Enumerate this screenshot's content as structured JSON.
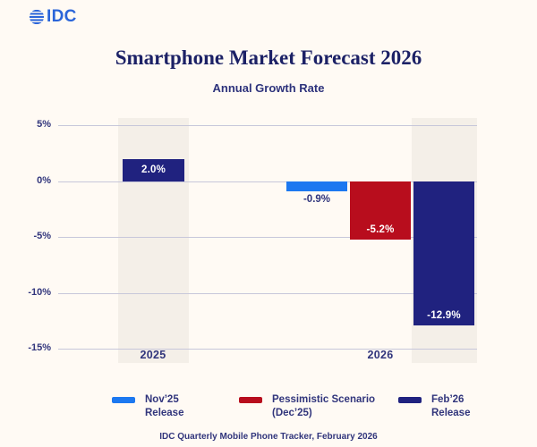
{
  "logo": {
    "text": "IDC"
  },
  "header": {
    "title": "Smartphone Market Forecast 2026",
    "subtitle": "Annual Growth Rate"
  },
  "colors": {
    "background": "#fffaf4",
    "band": "#f4efe8",
    "gridline": "#c7c7da",
    "navy": "#20227f",
    "blue": "#1c78f0",
    "red": "#b80d1d",
    "text_navy": "#31357c",
    "title_navy": "#1c2166",
    "logo_blue": "#2b65d9"
  },
  "chart_data": {
    "type": "bar",
    "title": "Smartphone Market Forecast 2026",
    "subtitle": "Annual Growth Rate",
    "unit": "%",
    "grid": true,
    "legend_position": "bottom",
    "categories": [
      "2025",
      "2026"
    ],
    "x_labels": [
      "2025",
      "2026"
    ],
    "series": [
      {
        "name": "Nov’25 Release",
        "color": "#1c78f0",
        "values": [
          null,
          -0.9
        ]
      },
      {
        "name": "Pessimistic Scenario (Dec’25)",
        "color": "#b80d1d",
        "values": [
          null,
          -5.2
        ]
      },
      {
        "name": "Feb’26 Release",
        "color": "#20227f",
        "values": [
          2.0,
          -12.9
        ]
      }
    ],
    "bars": {
      "feb25": {
        "category": "2025",
        "series": "Feb’26 Release",
        "value": 2.0,
        "label": "2.0%"
      },
      "nov26": {
        "category": "2026",
        "series": "Nov’25 Release",
        "value": -0.9,
        "label": "-0.9%"
      },
      "pess26": {
        "category": "2026",
        "series": "Pessimistic Scenario (Dec’25)",
        "value": -5.2,
        "label": "-5.2%"
      },
      "feb26": {
        "category": "2026",
        "series": "Feb’26 Release",
        "value": -12.9,
        "label": "-12.9%"
      }
    },
    "y_axis": {
      "ticks": [
        5,
        0,
        -5,
        -10,
        -15
      ],
      "tick_labels": [
        "5%",
        "0%",
        "-5%",
        "-10%",
        "-15%"
      ],
      "ylim": [
        -15,
        5
      ]
    }
  },
  "legend": {
    "items": [
      {
        "line1": "Nov’25",
        "line2": "Release"
      },
      {
        "line1": "Pessimistic Scenario",
        "line2": "(Dec’25)"
      },
      {
        "line1": "Feb’26",
        "line2": "Release"
      }
    ]
  },
  "footer": {
    "source": "IDC Quarterly Mobile Phone Tracker, February 2026"
  }
}
